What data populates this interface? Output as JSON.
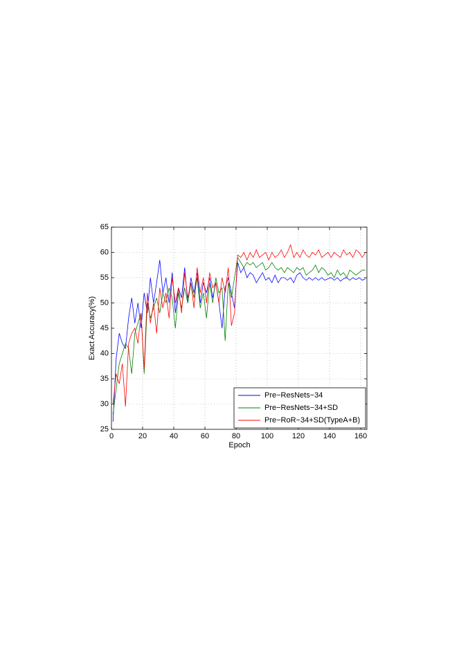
{
  "chart_data": {
    "type": "line",
    "xlabel": "Epoch",
    "ylabel": "Exact Accuracy(%)",
    "xlim": [
      0,
      164
    ],
    "ylim": [
      25,
      65
    ],
    "xticks": [
      0,
      20,
      40,
      60,
      80,
      100,
      120,
      140,
      160
    ],
    "yticks": [
      25,
      30,
      35,
      40,
      45,
      50,
      55,
      60,
      65
    ],
    "grid": true,
    "legend": "lower right",
    "x": [
      1,
      3,
      5,
      7,
      9,
      11,
      13,
      15,
      17,
      19,
      21,
      23,
      25,
      27,
      29,
      31,
      33,
      35,
      37,
      39,
      41,
      43,
      45,
      47,
      49,
      51,
      53,
      55,
      57,
      59,
      61,
      63,
      65,
      67,
      69,
      71,
      73,
      75,
      77,
      79,
      81,
      83,
      85,
      87,
      89,
      91,
      93,
      95,
      97,
      99,
      101,
      103,
      105,
      107,
      109,
      111,
      113,
      115,
      117,
      119,
      121,
      123,
      125,
      127,
      129,
      131,
      133,
      135,
      137,
      139,
      141,
      143,
      145,
      147,
      149,
      151,
      153,
      155,
      157,
      159,
      161,
      163
    ],
    "series": [
      {
        "name": "Pre−ResNets−34",
        "color": "#0000ff",
        "values": [
          26.5,
          39,
          44,
          42,
          41,
          47,
          51,
          46,
          50,
          45,
          52,
          48,
          55,
          50,
          54,
          58.5,
          52,
          55,
          50,
          56,
          48,
          53,
          51,
          57,
          50,
          55,
          52,
          56,
          50,
          54,
          52,
          55,
          51,
          54,
          50,
          45,
          53,
          55,
          52,
          49,
          58,
          56,
          57,
          55,
          56,
          55.5,
          54,
          55,
          56,
          54.5,
          55,
          54,
          55.5,
          54,
          55,
          55,
          54.5,
          55,
          54,
          55.5,
          56,
          55,
          54.5,
          55,
          54.5,
          55,
          54.5,
          55,
          54.5,
          54.8,
          55,
          54.5,
          55,
          54.3,
          54.8,
          55,
          54.5,
          55,
          54.6,
          55,
          54.5,
          54.8
        ]
      },
      {
        "name": "Pre−ResNets−34+SD",
        "color": "#008000",
        "values": [
          28,
          33,
          38,
          40,
          42,
          41,
          36,
          44,
          46,
          48,
          36,
          50,
          47,
          49,
          51,
          48,
          52,
          50,
          53,
          51,
          45,
          52,
          49,
          53,
          50,
          54,
          51,
          55,
          49,
          52,
          47,
          54,
          50,
          55,
          52,
          53,
          42.5,
          54,
          51,
          55,
          59,
          58,
          57,
          58,
          57.5,
          58,
          57,
          57.5,
          58,
          56.5,
          57,
          58,
          57,
          56.5,
          57,
          56,
          57,
          56.5,
          56,
          57,
          56.5,
          57,
          55.5,
          56,
          56.5,
          57.5,
          56,
          57,
          56.5,
          55.5,
          56,
          55,
          56.5,
          55.5,
          56,
          55,
          56.5,
          56,
          55.5,
          56,
          56.5,
          56.5
        ]
      },
      {
        "name": "Pre−RoR−34+SD(TypeA+B)",
        "color": "#ff0000",
        "values": [
          30,
          36,
          34,
          38,
          29.5,
          42,
          44,
          45,
          42,
          48,
          37,
          52,
          46,
          50,
          44,
          53,
          49,
          52,
          47,
          55,
          50,
          53,
          48,
          56,
          51,
          54,
          49,
          57,
          52,
          55,
          50,
          56,
          53,
          54,
          50,
          55,
          52,
          57,
          45.5,
          48,
          59.5,
          59,
          60,
          58.5,
          60,
          59,
          60.5,
          59,
          59.5,
          60,
          58.5,
          60,
          59,
          59.5,
          60.5,
          59,
          60,
          61.5,
          59,
          60,
          59,
          60.5,
          59.5,
          59,
          60,
          59.5,
          60.5,
          59,
          59.5,
          60,
          59,
          60,
          59.5,
          59,
          60.5,
          59.5,
          60,
          59,
          60.5,
          60,
          59,
          60
        ]
      }
    ]
  }
}
